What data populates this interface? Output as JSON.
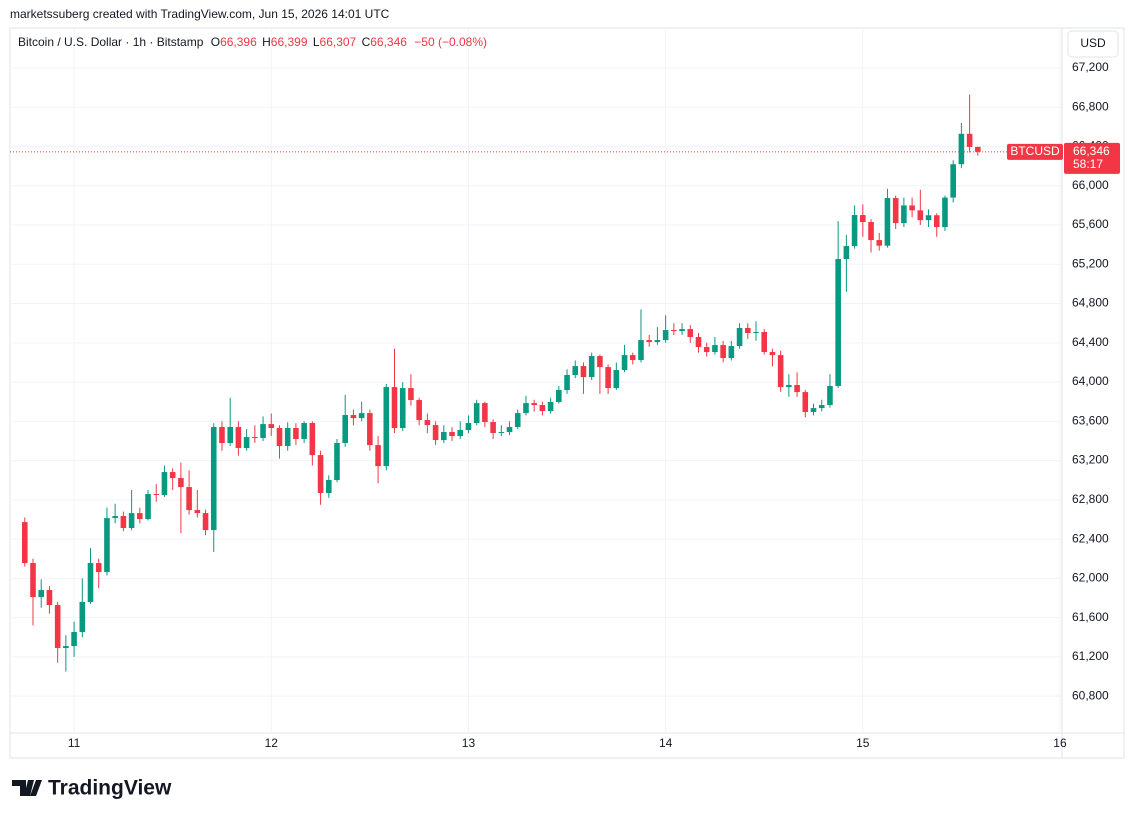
{
  "header": "marketssuberg created with TradingView.com, Jun 15, 2026 14:01 UTC",
  "footer": "TradingView",
  "chart_data": {
    "type": "candlestick",
    "title": "Bitcoin / U.S. Dollar · 1h · Bitstamp",
    "ohlc_legend": {
      "open_label": "O",
      "open": "66,396",
      "high_label": "H",
      "high": "66,399",
      "low_label": "L",
      "low": "66,307",
      "close_label": "C",
      "close": "66,346",
      "change": "−50 (−0.08%)"
    },
    "currency": "USD",
    "price_tag": {
      "symbol": "BTCUSD",
      "price": "66,346",
      "countdown": "58:17"
    },
    "up_color": "#089981",
    "down_color": "#f23645",
    "grid": true,
    "xlim": [
      10.675,
      16.0102
    ],
    "xticks": [
      11,
      12,
      13,
      14,
      15,
      16
    ],
    "ylim": [
      60424,
      67608
    ],
    "yticks": [
      {
        "value": 60800,
        "label": "60,800"
      },
      {
        "value": 61200,
        "label": "61,200"
      },
      {
        "value": 61600,
        "label": "61,600"
      },
      {
        "value": 62000,
        "label": "62,000"
      },
      {
        "value": 62400,
        "label": "62,400"
      },
      {
        "value": 62800,
        "label": "62,800"
      },
      {
        "value": 63200,
        "label": "63,200"
      },
      {
        "value": 63600,
        "label": "63,600"
      },
      {
        "value": 64000,
        "label": "64,000"
      },
      {
        "value": 64400,
        "label": "64,400"
      },
      {
        "value": 64800,
        "label": "64,800"
      },
      {
        "value": 65200,
        "label": "65,200"
      },
      {
        "value": 65600,
        "label": "65,600"
      },
      {
        "value": 66000,
        "label": "66,000"
      },
      {
        "value": 66400,
        "label": "66,400"
      },
      {
        "value": 66800,
        "label": "66,800"
      },
      {
        "value": 67200,
        "label": "67,200"
      }
    ],
    "x": [
      10.75,
      10.7917,
      10.8333,
      10.875,
      10.9167,
      10.9583,
      11,
      11.0417,
      11.0833,
      11.125,
      11.1667,
      11.2083,
      11.25,
      11.2917,
      11.3333,
      11.375,
      11.4167,
      11.4583,
      11.5,
      11.5417,
      11.5833,
      11.625,
      11.6667,
      11.7083,
      11.75,
      11.7917,
      11.8333,
      11.875,
      11.9167,
      11.9583,
      12,
      12.0417,
      12.0833,
      12.125,
      12.1667,
      12.2083,
      12.25,
      12.2917,
      12.3333,
      12.375,
      12.4167,
      12.4583,
      12.5,
      12.5417,
      12.5833,
      12.625,
      12.6667,
      12.7083,
      12.75,
      12.7917,
      12.8333,
      12.875,
      12.9167,
      12.9583,
      13,
      13.0417,
      13.0833,
      13.125,
      13.1667,
      13.2083,
      13.25,
      13.2917,
      13.3333,
      13.375,
      13.4167,
      13.4583,
      13.5,
      13.5417,
      13.5833,
      13.625,
      13.6667,
      13.7083,
      13.75,
      13.7917,
      13.8333,
      13.875,
      13.9167,
      13.9583,
      14,
      14.0417,
      14.0833,
      14.125,
      14.1667,
      14.2083,
      14.25,
      14.2917,
      14.3333,
      14.375,
      14.4167,
      14.4583,
      14.5,
      14.5417,
      14.5833,
      14.625,
      14.6667,
      14.7083,
      14.75,
      14.7917,
      14.8333,
      14.875,
      14.9167,
      14.9583,
      15,
      15.0417,
      15.0833,
      15.125,
      15.1667,
      15.2083,
      15.25,
      15.2917,
      15.3333,
      15.375,
      15.4167,
      15.4583,
      15.5,
      15.5417,
      15.5833
    ],
    "open": [
      62573,
      62156,
      61809,
      61881,
      61728,
      61290,
      61310,
      61453,
      61759,
      62156,
      62064,
      62614,
      62635,
      62513,
      62665,
      62604,
      62859,
      62849,
      63083,
      63022,
      62930,
      62696,
      62665,
      62492,
      63542,
      63379,
      63542,
      63328,
      63440,
      63430,
      63572,
      63532,
      63348,
      63532,
      63420,
      63583,
      63256,
      62869,
      63002,
      63379,
      63664,
      63633,
      63684,
      63358,
      63144,
      63949,
      63532,
      63939,
      63817,
      63613,
      63562,
      63409,
      63491,
      63450,
      63511,
      63583,
      63786,
      63593,
      63481,
      63491,
      63542,
      63684,
      63786,
      63766,
      63705,
      63797,
      63919,
      64072,
      64163,
      64051,
      64265,
      64153,
      63939,
      64123,
      64275,
      64225,
      64428,
      64408,
      64428,
      64530,
      64520,
      64540,
      64459,
      64357,
      64306,
      64377,
      64245,
      64367,
      64551,
      64500,
      64510,
      64306,
      64275,
      63949,
      63970,
      63898,
      63695,
      63735,
      63766,
      63960,
      65254,
      65386,
      65702,
      65631,
      65447,
      65390,
      65875,
      65620,
      65800,
      65750,
      65650,
      65700,
      65580,
      65880,
      66220,
      66530,
      66396
    ],
    "high": [
      62620,
      62200,
      61990,
      61920,
      61760,
      61420,
      61560,
      62000,
      62310,
      62200,
      62720,
      62760,
      62680,
      62900,
      62720,
      62900,
      62960,
      63150,
      63120,
      63180,
      63100,
      62900,
      62700,
      63580,
      63600,
      63840,
      63600,
      63520,
      63560,
      63650,
      63680,
      63560,
      63590,
      63580,
      63600,
      63600,
      63300,
      63050,
      63420,
      63870,
      63720,
      63800,
      63720,
      63450,
      63980,
      64340,
      64000,
      64080,
      63840,
      63680,
      63600,
      63560,
      63540,
      63600,
      63660,
      63820,
      63800,
      63620,
      63560,
      63600,
      63720,
      63860,
      63820,
      63800,
      63840,
      63960,
      64130,
      64220,
      64200,
      64300,
      64280,
      64180,
      64200,
      64380,
      64300,
      64740,
      64480,
      64560,
      64680,
      64600,
      64600,
      64580,
      64500,
      64400,
      64460,
      64420,
      64420,
      64600,
      64600,
      64620,
      64540,
      64340,
      64320,
      64080,
      64100,
      63920,
      63780,
      63820,
      64080,
      65640,
      65500,
      65800,
      65810,
      65660,
      65520,
      65970,
      65900,
      65880,
      65880,
      65960,
      65760,
      65720,
      65900,
      66260,
      66640,
      66930,
      66399
    ],
    "low": [
      62120,
      61520,
      61700,
      61640,
      61140,
      61050,
      61200,
      61400,
      61740,
      61900,
      62030,
      62560,
      62480,
      62490,
      62560,
      62590,
      62780,
      62830,
      62900,
      62460,
      62650,
      62620,
      62440,
      62270,
      63300,
      63350,
      63250,
      63300,
      63380,
      63400,
      63450,
      63220,
      63300,
      63360,
      63380,
      63150,
      62750,
      62820,
      62980,
      63340,
      63560,
      63600,
      63300,
      62970,
      63100,
      63480,
      63500,
      63760,
      63560,
      63480,
      63360,
      63380,
      63400,
      63420,
      63480,
      63560,
      63540,
      63420,
      63450,
      63460,
      63520,
      63660,
      63700,
      63660,
      63680,
      63780,
      63880,
      64040,
      63880,
      64020,
      63880,
      63880,
      63920,
      64100,
      64180,
      64200,
      64360,
      64380,
      64400,
      64480,
      64480,
      64400,
      64300,
      64260,
      64280,
      64200,
      64220,
      64340,
      64440,
      64420,
      64280,
      64160,
      63900,
      63850,
      63850,
      63640,
      63660,
      63700,
      63740,
      63940,
      64920,
      65360,
      65480,
      65320,
      65340,
      65370,
      65560,
      65580,
      65680,
      65600,
      65580,
      65480,
      65540,
      65830,
      66180,
      66340,
      66307
    ],
    "close": [
      62156,
      61809,
      61881,
      61728,
      61290,
      61310,
      61453,
      61759,
      62156,
      62064,
      62614,
      62635,
      62513,
      62665,
      62604,
      62859,
      62849,
      63083,
      63022,
      62930,
      62696,
      62665,
      62492,
      63542,
      63379,
      63542,
      63328,
      63440,
      63430,
      63572,
      63532,
      63348,
      63532,
      63420,
      63583,
      63256,
      62869,
      63002,
      63379,
      63664,
      63633,
      63684,
      63358,
      63144,
      63949,
      63532,
      63939,
      63817,
      63613,
      63562,
      63409,
      63491,
      63450,
      63511,
      63583,
      63786,
      63593,
      63481,
      63491,
      63542,
      63684,
      63786,
      63766,
      63705,
      63797,
      63919,
      64072,
      64163,
      64051,
      64265,
      64153,
      63939,
      64123,
      64275,
      64225,
      64428,
      64408,
      64428,
      64530,
      64520,
      64540,
      64459,
      64357,
      64306,
      64377,
      64245,
      64367,
      64551,
      64500,
      64510,
      64306,
      64275,
      63949,
      63970,
      63898,
      63695,
      63735,
      63766,
      63960,
      65254,
      65386,
      65702,
      65631,
      65447,
      65390,
      65875,
      65620,
      65800,
      65750,
      65650,
      65700,
      65580,
      65880,
      66220,
      66530,
      66396,
      66346
    ]
  }
}
